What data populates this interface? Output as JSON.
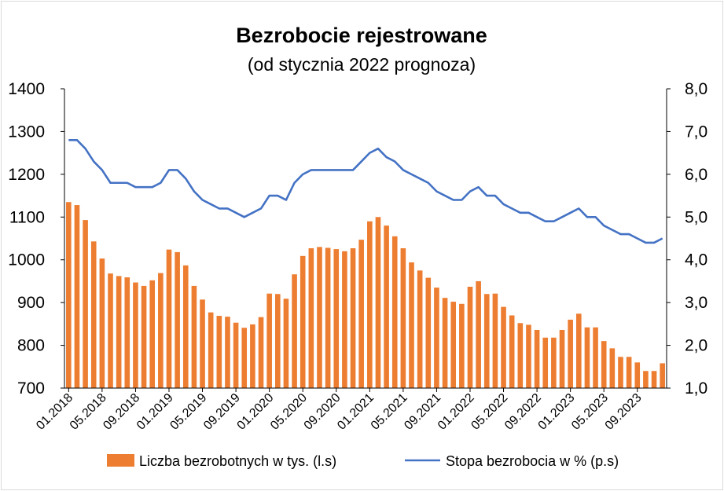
{
  "chart_data": {
    "type": "bar",
    "title": "Bezrobocie rejestrowane",
    "subtitle": "(od stycznia 2022 prognoza)",
    "y_left": {
      "min": 700,
      "max": 1400,
      "ticks": [
        "700",
        "800",
        "900",
        "1000",
        "1100",
        "1200",
        "1300",
        "1400"
      ]
    },
    "y_right": {
      "min": 1.0,
      "max": 8.0,
      "ticks": [
        "1,0",
        "2,0",
        "3,0",
        "4,0",
        "5,0",
        "6,0",
        "7,0",
        "8,0"
      ]
    },
    "x_tick_labels": [
      {
        "index": 0,
        "label": "01.2018"
      },
      {
        "index": 4,
        "label": "05.2018"
      },
      {
        "index": 8,
        "label": "09.2018"
      },
      {
        "index": 12,
        "label": "01.2019"
      },
      {
        "index": 16,
        "label": "05.2019"
      },
      {
        "index": 20,
        "label": "09.2019"
      },
      {
        "index": 24,
        "label": "01.2020"
      },
      {
        "index": 28,
        "label": "05.2020"
      },
      {
        "index": 32,
        "label": "09.2020"
      },
      {
        "index": 36,
        "label": "01.2021"
      },
      {
        "index": 40,
        "label": "05.2021"
      },
      {
        "index": 44,
        "label": "09.2021"
      },
      {
        "index": 48,
        "label": "01.2022"
      },
      {
        "index": 52,
        "label": "05.2022"
      },
      {
        "index": 56,
        "label": "09.2022"
      },
      {
        "index": 60,
        "label": "01.2023"
      },
      {
        "index": 64,
        "label": "05.2023"
      },
      {
        "index": 68,
        "label": "09.2023"
      }
    ],
    "series": [
      {
        "name": "Liczba bezrobotnych w tys. (l.s)",
        "kind": "bar",
        "axis": "left",
        "color": "#ED7D31",
        "values": [
          1135,
          1128,
          1093,
          1043,
          1003,
          968,
          962,
          959,
          947,
          939,
          952,
          969,
          1024,
          1018,
          987,
          939,
          907,
          877,
          869,
          867,
          853,
          841,
          849,
          866,
          921,
          920,
          909,
          966,
          1009,
          1027,
          1030,
          1028,
          1025,
          1020,
          1027,
          1047,
          1090,
          1100,
          1080,
          1055,
          1027,
          994,
          975,
          958,
          935,
          911,
          902,
          897,
          937,
          950,
          920,
          921,
          890,
          870,
          852,
          848,
          836,
          818,
          818,
          836,
          860,
          874,
          842,
          842,
          810,
          793,
          773,
          773,
          760,
          740,
          740,
          758
        ]
      },
      {
        "name": "Stopa bezrobocia w % (p.s)",
        "kind": "line",
        "axis": "right",
        "color": "#4472C4",
        "values": [
          6.8,
          6.8,
          6.6,
          6.3,
          6.1,
          5.8,
          5.8,
          5.8,
          5.7,
          5.7,
          5.7,
          5.8,
          6.1,
          6.1,
          5.9,
          5.6,
          5.4,
          5.3,
          5.2,
          5.2,
          5.1,
          5.0,
          5.1,
          5.2,
          5.5,
          5.5,
          5.4,
          5.8,
          6.0,
          6.1,
          6.1,
          6.1,
          6.1,
          6.1,
          6.1,
          6.3,
          6.5,
          6.6,
          6.4,
          6.3,
          6.1,
          6.0,
          5.9,
          5.8,
          5.6,
          5.5,
          5.4,
          5.4,
          5.6,
          5.7,
          5.5,
          5.5,
          5.3,
          5.2,
          5.1,
          5.1,
          5.0,
          4.9,
          4.9,
          5.0,
          5.1,
          5.2,
          5.0,
          5.0,
          4.8,
          4.7,
          4.6,
          4.6,
          4.5,
          4.4,
          4.4,
          4.5
        ]
      }
    ],
    "legend": [
      {
        "label": "Liczba bezrobotnych w tys. (l.s)",
        "color": "#ED7D31",
        "kind": "bar"
      },
      {
        "label": "Stopa bezrobocia w % (p.s)",
        "color": "#4472C4",
        "kind": "line"
      }
    ],
    "legend_position": "bottom"
  }
}
